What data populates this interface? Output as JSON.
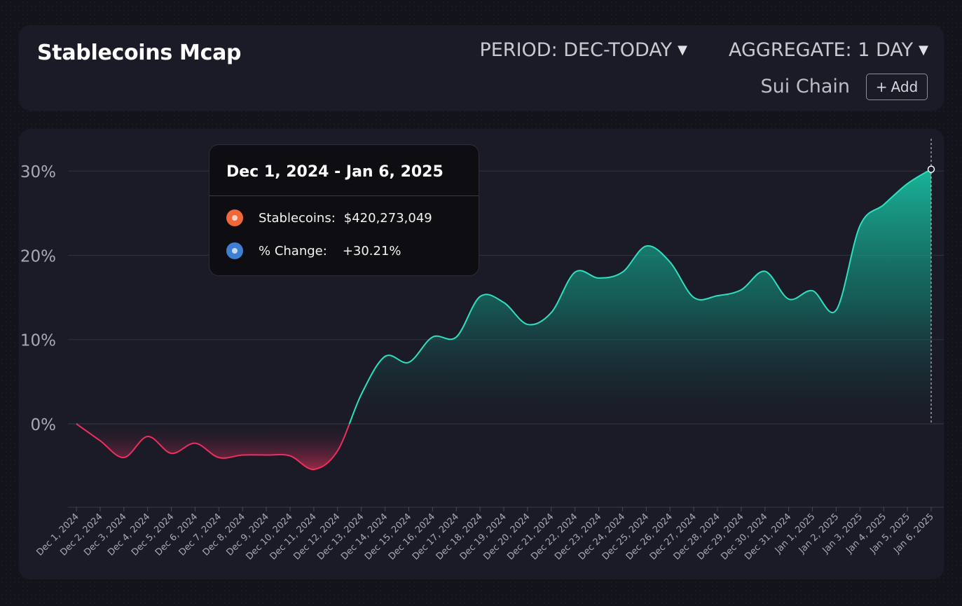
{
  "header": {
    "title": "Stablecoins Mcap",
    "period": {
      "label": "PERIOD: DEC-TODAY"
    },
    "aggregate": {
      "label": "AGGREGATE: 1 DAY"
    },
    "chain": "Sui Chain",
    "add_button": {
      "label": "Add"
    }
  },
  "tooltip": {
    "title": "Dec 1, 2024 - Jan 6, 2025",
    "rows": [
      {
        "label": "Stablecoins:",
        "value": "$420,273,049",
        "color": "#f0673a"
      },
      {
        "label": "% Change:",
        "value": "+30.21%",
        "color": "#3e7fd1"
      }
    ]
  },
  "chart_data": {
    "type": "area",
    "title": "",
    "xlabel": "",
    "ylabel": "",
    "ylim": [
      -10,
      33
    ],
    "y_ticks": [
      0,
      10,
      20,
      30
    ],
    "y_tick_labels": [
      "0%",
      "10%",
      "20%",
      "30%"
    ],
    "grid": true,
    "positive_color": "#2ee0c0",
    "negative_color": "#ee2e5e",
    "categories": [
      "Dec 1, 2024",
      "Dec 2, 2024",
      "Dec 3, 2024",
      "Dec 4, 2024",
      "Dec 5, 2024",
      "Dec 6, 2024",
      "Dec 7, 2024",
      "Dec 8, 2024",
      "Dec 9, 2024",
      "Dec 10, 2024",
      "Dec 11, 2024",
      "Dec 12, 2024",
      "Dec 13, 2024",
      "Dec 14, 2024",
      "Dec 15, 2024",
      "Dec 16, 2024",
      "Dec 17, 2024",
      "Dec 18, 2024",
      "Dec 19, 2024",
      "Dec 20, 2024",
      "Dec 21, 2024",
      "Dec 22, 2024",
      "Dec 23, 2024",
      "Dec 24, 2024",
      "Dec 25, 2024",
      "Dec 26, 2024",
      "Dec 27, 2024",
      "Dec 28, 2024",
      "Dec 29, 2024",
      "Dec 30, 2024",
      "Dec 31, 2024",
      "Jan 1, 2025",
      "Jan 2, 2025",
      "Jan 3, 2025",
      "Jan 4, 2025",
      "Jan 5, 2025",
      "Jan 6, 2025"
    ],
    "series": [
      {
        "values": [
          0,
          -2,
          -4,
          -1.5,
          -3.5,
          -2.3,
          -4,
          -3.7,
          -3.7,
          -3.8,
          -5.4,
          -3.2,
          3.5,
          8,
          7.3,
          10.3,
          10.3,
          15.1,
          14.4,
          11.8,
          13.2,
          18,
          17.3,
          18,
          21.1,
          19.2,
          15,
          15.2,
          15.9,
          18.1,
          14.8,
          15.8,
          13.5,
          23.5,
          26,
          28.5,
          30.21
        ]
      }
    ],
    "highlight_index": 36
  }
}
